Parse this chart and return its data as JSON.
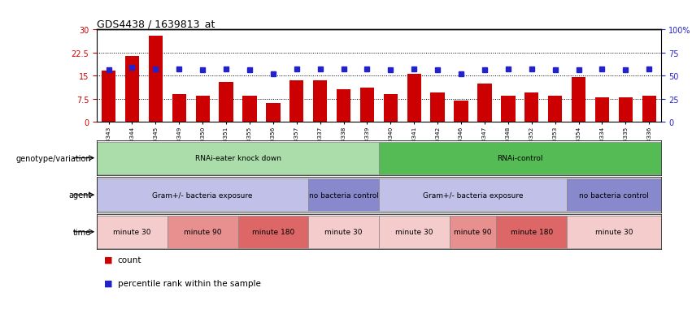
{
  "title": "GDS4438 / 1639813_at",
  "samples": [
    "GSM783343",
    "GSM783344",
    "GSM783345",
    "GSM783349",
    "GSM783350",
    "GSM783351",
    "GSM783355",
    "GSM783356",
    "GSM783357",
    "GSM783337",
    "GSM783338",
    "GSM783339",
    "GSM783340",
    "GSM783341",
    "GSM783342",
    "GSM783346",
    "GSM783347",
    "GSM783348",
    "GSM783352",
    "GSM783353",
    "GSM783354",
    "GSM783334",
    "GSM783335",
    "GSM783336"
  ],
  "bar_values": [
    16.5,
    21.5,
    28.0,
    9.0,
    8.5,
    13.0,
    8.5,
    6.0,
    13.5,
    13.5,
    10.5,
    11.0,
    9.0,
    15.5,
    9.5,
    7.0,
    12.5,
    8.5,
    9.5,
    8.5,
    14.5,
    8.0,
    8.0,
    8.5
  ],
  "percentile_values": [
    56,
    59,
    57,
    57,
    56,
    57,
    56,
    52,
    57,
    57,
    57,
    57,
    56,
    57,
    56,
    52,
    56,
    57,
    57,
    56,
    56,
    57,
    56,
    57
  ],
  "bar_color": "#cc0000",
  "percentile_color": "#2222cc",
  "ylim_left": [
    0,
    30
  ],
  "ylim_right": [
    0,
    100
  ],
  "yticks_left": [
    0,
    7.5,
    15,
    22.5,
    30
  ],
  "ytick_labels_left": [
    "0",
    "7.5",
    "15",
    "22.5",
    "30"
  ],
  "yticks_right": [
    0,
    25,
    50,
    75,
    100
  ],
  "ytick_labels_right": [
    "0",
    "25",
    "50",
    "75",
    "100%"
  ],
  "genotype_blocks": [
    {
      "label": "RNAi-eater knock down",
      "start": 0,
      "end": 12,
      "color": "#aaddaa"
    },
    {
      "label": "RNAi-control",
      "start": 12,
      "end": 24,
      "color": "#55bb55"
    }
  ],
  "agent_blocks": [
    {
      "label": "Gram+/- bacteria exposure",
      "start": 0,
      "end": 9,
      "color": "#c0c0e8"
    },
    {
      "label": "no bacteria control",
      "start": 9,
      "end": 12,
      "color": "#8888cc"
    },
    {
      "label": "Gram+/- bacteria exposure",
      "start": 12,
      "end": 20,
      "color": "#c0c0e8"
    },
    {
      "label": "no bacteria control",
      "start": 20,
      "end": 24,
      "color": "#8888cc"
    }
  ],
  "time_blocks": [
    {
      "label": "minute 30",
      "start": 0,
      "end": 3,
      "color": "#f5cccc"
    },
    {
      "label": "minute 90",
      "start": 3,
      "end": 6,
      "color": "#e89090"
    },
    {
      "label": "minute 180",
      "start": 6,
      "end": 9,
      "color": "#dd6666"
    },
    {
      "label": "minute 30",
      "start": 9,
      "end": 12,
      "color": "#f5cccc"
    },
    {
      "label": "minute 30",
      "start": 12,
      "end": 15,
      "color": "#f5cccc"
    },
    {
      "label": "minute 90",
      "start": 15,
      "end": 17,
      "color": "#e89090"
    },
    {
      "label": "minute 180",
      "start": 17,
      "end": 20,
      "color": "#dd6666"
    },
    {
      "label": "minute 30",
      "start": 20,
      "end": 24,
      "color": "#f5cccc"
    }
  ],
  "row_labels": [
    "genotype/variation",
    "agent",
    "time"
  ],
  "legend_items": [
    {
      "label": "count",
      "color": "#cc0000"
    },
    {
      "label": "percentile rank within the sample",
      "color": "#2222cc"
    }
  ]
}
